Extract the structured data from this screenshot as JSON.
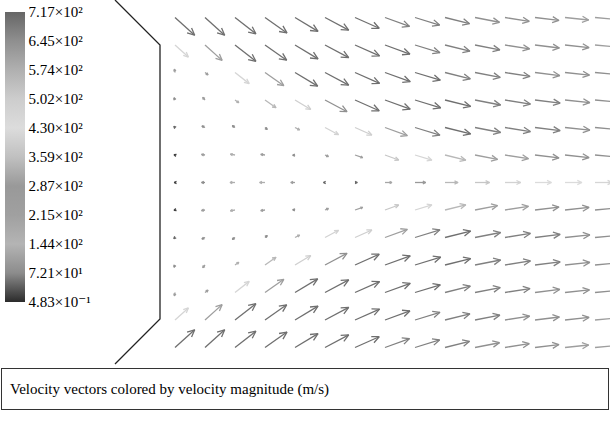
{
  "chart_data": {
    "type": "vector_field",
    "title": "Velocity vectors colored by velocity magnitude (m/s)",
    "tick_labels": false,
    "grid": false,
    "xlim": [
      0,
      9.9
    ],
    "ylim": [
      -3.65,
      3.65
    ],
    "x": [
      1.2,
      1.8,
      2.4,
      3.0,
      3.6,
      4.2,
      4.8,
      5.4,
      6.0,
      6.6,
      7.2,
      7.8,
      8.4,
      9.0,
      9.6
    ],
    "y": [
      3.3,
      2.75,
      2.2,
      1.65,
      1.1,
      0.55,
      0,
      -0.55,
      -1.1,
      -1.65,
      -2.2,
      -2.75,
      -3.3
    ],
    "u": [
      [
        513,
        513,
        544,
        573,
        600,
        618,
        631,
        639,
        641,
        640,
        638,
        632,
        625,
        617,
        608
      ],
      [
        349,
        446,
        544,
        565,
        600,
        618,
        640,
        649,
        650,
        650,
        648,
        642,
        636,
        627,
        618
      ],
      [
        -15,
        80,
        370,
        491,
        591,
        618,
        640,
        658,
        660,
        660,
        658,
        652,
        645,
        637,
        627
      ],
      [
        -25,
        -60,
        100,
        287,
        411,
        574,
        631,
        658,
        669,
        669,
        668,
        662,
        655,
        647,
        637
      ],
      [
        -30,
        -80,
        -70,
        60,
        120,
        353,
        439,
        583,
        650,
        669,
        668,
        662,
        655,
        647,
        637
      ],
      [
        -25,
        -90,
        -120,
        -110,
        -60,
        90,
        200,
        357,
        440,
        543,
        589,
        613,
        626,
        627,
        627
      ],
      [
        -20,
        -90,
        -130,
        -140,
        -110,
        -40,
        60,
        180,
        280,
        340,
        380,
        410,
        430,
        440,
        450
      ],
      [
        -25,
        -90,
        -120,
        -110,
        -60,
        90,
        200,
        357,
        440,
        543,
        589,
        613,
        626,
        627,
        627
      ],
      [
        -30,
        -80,
        -70,
        60,
        120,
        353,
        439,
        583,
        650,
        669,
        668,
        662,
        655,
        647,
        637
      ],
      [
        -25,
        -60,
        100,
        287,
        411,
        574,
        631,
        658,
        669,
        669,
        668,
        662,
        655,
        647,
        637
      ],
      [
        -15,
        80,
        370,
        491,
        591,
        618,
        640,
        658,
        660,
        660,
        658,
        652,
        645,
        637,
        627
      ],
      [
        349,
        446,
        544,
        565,
        600,
        618,
        640,
        649,
        650,
        650,
        648,
        642,
        636,
        627,
        618
      ],
      [
        513,
        513,
        544,
        573,
        600,
        618,
        631,
        639,
        641,
        640,
        638,
        632,
        625,
        617,
        608
      ]
    ],
    "v": [
      [
        -462,
        -462,
        -425,
        -402,
        -361,
        -328,
        -281,
        -233,
        -196,
        -160,
        -124,
        -100,
        -77,
        -65,
        -53
      ],
      [
        -314,
        -401,
        -425,
        -396,
        -361,
        -328,
        -285,
        -236,
        -199,
        -162,
        -126,
        -101,
        -78,
        -66,
        -54
      ],
      [
        90,
        -60,
        -290,
        -344,
        -355,
        -328,
        -285,
        -239,
        -201,
        -165,
        -128,
        -103,
        -79,
        -67,
        -55
      ],
      [
        60,
        70,
        -70,
        -201,
        -247,
        -305,
        -281,
        -239,
        -204,
        -167,
        -130,
        -105,
        -81,
        -68,
        -56
      ],
      [
        30,
        40,
        50,
        -50,
        -60,
        -188,
        -195,
        -212,
        -199,
        -167,
        -130,
        -105,
        -81,
        -68,
        -56
      ],
      [
        10,
        15,
        20,
        15,
        -10,
        -40,
        -70,
        -130,
        -134,
        -136,
        -115,
        -97,
        -77,
        -66,
        -55
      ],
      [
        0,
        0,
        0,
        0,
        0,
        0,
        0,
        0,
        0,
        0,
        0,
        0,
        0,
        0,
        0
      ],
      [
        -10,
        -15,
        -20,
        -15,
        10,
        40,
        70,
        130,
        134,
        136,
        115,
        97,
        77,
        66,
        55
      ],
      [
        -30,
        -40,
        -50,
        50,
        60,
        188,
        195,
        212,
        199,
        167,
        130,
        105,
        81,
        68,
        56
      ],
      [
        -60,
        -70,
        70,
        201,
        247,
        305,
        281,
        239,
        204,
        167,
        130,
        105,
        81,
        68,
        56
      ],
      [
        -90,
        60,
        290,
        344,
        355,
        328,
        285,
        239,
        201,
        165,
        128,
        103,
        79,
        67,
        55
      ],
      [
        314,
        401,
        425,
        396,
        361,
        328,
        285,
        236,
        199,
        162,
        126,
        101,
        78,
        66,
        54
      ],
      [
        462,
        462,
        425,
        402,
        361,
        328,
        281,
        233,
        196,
        160,
        124,
        100,
        77,
        65,
        53
      ]
    ],
    "colorbar_range": [
      0.483,
      717
    ],
    "colorbar_ticks": [
      {
        "value": 717,
        "label": "7.17×10²"
      },
      {
        "value": 645,
        "label": "6.45×10²"
      },
      {
        "value": 574,
        "label": "5.74×10²"
      },
      {
        "value": 502,
        "label": "5.02×10²"
      },
      {
        "value": 430,
        "label": "4.30×10²"
      },
      {
        "value": 359,
        "label": "3.59×10²"
      },
      {
        "value": 287,
        "label": "2.87×10²"
      },
      {
        "value": 215,
        "label": "2.15×10²"
      },
      {
        "value": 144,
        "label": "1.44×10²"
      },
      {
        "value": 72.1,
        "label": "7.21×10¹"
      },
      {
        "value": 0.483,
        "label": "4.83×10⁻¹"
      }
    ]
  }
}
